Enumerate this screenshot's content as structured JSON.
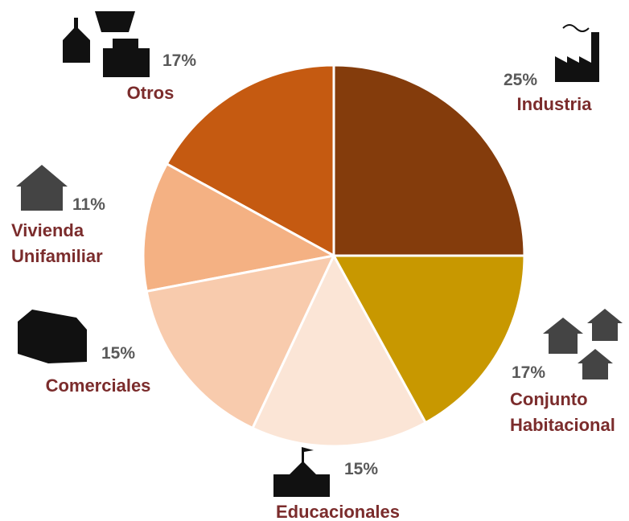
{
  "chart_data": {
    "type": "pie",
    "categories": [
      "Industria",
      "Conjunto Habitacional",
      "Educacionales",
      "Comerciales",
      "Vivienda Unifamiliar",
      "Otros"
    ],
    "values": [
      25,
      17,
      15,
      15,
      11,
      17
    ],
    "value_labels": [
      "25%",
      "17%",
      "15%",
      "15%",
      "11%",
      "17%"
    ],
    "colors": [
      "#843c0c",
      "#c89800",
      "#fbe5d6",
      "#f8cbad",
      "#f4b183",
      "#c55a11"
    ]
  }
}
